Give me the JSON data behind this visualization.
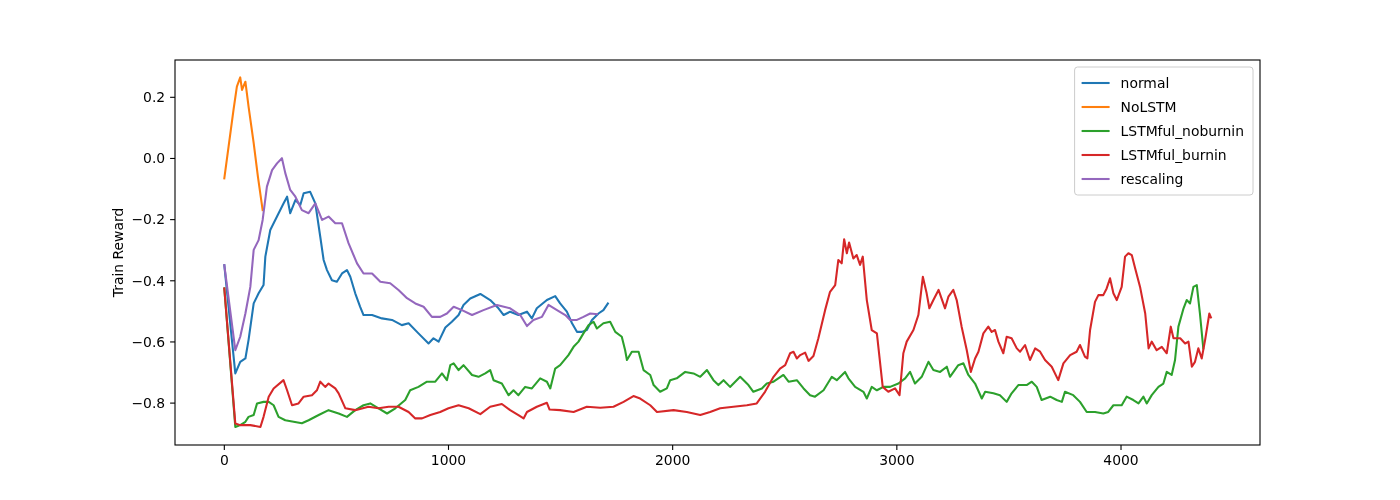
{
  "chart_data": {
    "type": "line",
    "ylabel": "Train Reward",
    "xlim": [
      -220,
      4620
    ],
    "ylim": [
      -0.937,
      0.322
    ],
    "xticks": [
      0,
      1000,
      2000,
      3000,
      4000
    ],
    "yticks": [
      {
        "value": 0.2,
        "label": "0.2"
      },
      {
        "value": 0,
        "label": "0.0"
      },
      {
        "value": -0.2,
        "label": "−0.2"
      },
      {
        "value": -0.4,
        "label": "−0.4"
      },
      {
        "value": -0.6,
        "label": "−0.6"
      },
      {
        "value": -0.8,
        "label": "−0.8"
      }
    ],
    "legend": "top right",
    "series": [
      {
        "name": "normal",
        "color": "#1f77b4",
        "x": [
          0,
          49,
          71,
          94,
          108,
          131,
          153,
          175,
          183,
          205,
          235,
          264,
          280,
          294,
          317,
          339,
          354,
          383,
          406,
          428,
          443,
          458,
          480,
          502,
          525,
          547,
          562,
          584,
          606,
          621,
          659,
          703,
          748,
          792,
          822,
          866,
          911,
          933,
          956,
          986,
          1015,
          1045,
          1067,
          1097,
          1142,
          1186,
          1223,
          1246,
          1275,
          1312,
          1350,
          1372,
          1394,
          1439,
          1476,
          1498,
          1528,
          1551,
          1573,
          1595,
          1617,
          1640,
          1669,
          1691,
          1711
        ],
        "values": [
          -0.349,
          -0.703,
          -0.665,
          -0.654,
          -0.594,
          -0.474,
          -0.441,
          -0.414,
          -0.321,
          -0.234,
          -0.19,
          -0.147,
          -0.125,
          -0.179,
          -0.136,
          -0.152,
          -0.114,
          -0.109,
          -0.147,
          -0.256,
          -0.332,
          -0.365,
          -0.398,
          -0.403,
          -0.376,
          -0.365,
          -0.387,
          -0.441,
          -0.485,
          -0.512,
          -0.512,
          -0.523,
          -0.528,
          -0.545,
          -0.539,
          -0.572,
          -0.605,
          -0.588,
          -0.599,
          -0.553,
          -0.534,
          -0.512,
          -0.479,
          -0.458,
          -0.443,
          -0.463,
          -0.49,
          -0.512,
          -0.501,
          -0.512,
          -0.501,
          -0.523,
          -0.49,
          -0.463,
          -0.45,
          -0.474,
          -0.501,
          -0.539,
          -0.567,
          -0.567,
          -0.561,
          -0.528,
          -0.507,
          -0.496,
          -0.474
        ]
      },
      {
        "name": "NoLSTM",
        "color": "#ff7f0e",
        "x": [
          0,
          19,
          41,
          56,
          71,
          79,
          94,
          108,
          131,
          150,
          171
        ],
        "values": [
          -0.065,
          0.039,
          0.159,
          0.235,
          0.265,
          0.224,
          0.251,
          0.17,
          0.05,
          -0.06,
          -0.169
        ]
      },
      {
        "name": "LSTMful_noburnin",
        "color": "#2ca02c",
        "x": [
          0,
          49,
          71,
          94,
          108,
          131,
          146,
          175,
          198,
          220,
          242,
          272,
          309,
          346,
          376,
          421,
          465,
          510,
          547,
          584,
          621,
          651,
          688,
          726,
          763,
          807,
          829,
          866,
          904,
          941,
          971,
          993,
          1008,
          1023,
          1045,
          1067,
          1105,
          1134,
          1164,
          1186,
          1201,
          1238,
          1268,
          1290,
          1312,
          1342,
          1372,
          1409,
          1439,
          1454,
          1476,
          1498,
          1535,
          1558,
          1580,
          1602,
          1625,
          1647,
          1662,
          1691,
          1721,
          1744,
          1773,
          1788,
          1796,
          1818,
          1848,
          1870,
          1900,
          1915,
          1944,
          1974,
          1989,
          2018,
          2056,
          2093,
          2123,
          2153,
          2182,
          2204,
          2227,
          2256,
          2301,
          2338,
          2360,
          2398,
          2420,
          2450,
          2494,
          2517,
          2554,
          2584,
          2613,
          2635,
          2673,
          2710,
          2732,
          2769,
          2784,
          2814,
          2851,
          2866,
          2888,
          2911,
          2940,
          2970,
          3007,
          3037,
          3059,
          3081,
          3111,
          3141,
          3163,
          3193,
          3223,
          3237,
          3274,
          3297,
          3319,
          3349,
          3379,
          3394,
          3431,
          3460,
          3490,
          3512,
          3542,
          3579,
          3602,
          3624,
          3646,
          3684,
          3713,
          3736,
          3750,
          3787,
          3817,
          3847,
          3884,
          3921,
          3943,
          3966,
          4003,
          4025,
          4055,
          4078,
          4100,
          4115,
          4137,
          4167,
          4189,
          4204,
          4226,
          4241,
          4256,
          4279,
          4293,
          4308,
          4323,
          4338,
          4352,
          4367
        ],
        "values": [
          -0.425,
          -0.878,
          -0.872,
          -0.861,
          -0.845,
          -0.839,
          -0.801,
          -0.796,
          -0.796,
          -0.807,
          -0.845,
          -0.856,
          -0.861,
          -0.866,
          -0.856,
          -0.839,
          -0.823,
          -0.834,
          -0.845,
          -0.823,
          -0.807,
          -0.801,
          -0.817,
          -0.834,
          -0.817,
          -0.79,
          -0.758,
          -0.747,
          -0.73,
          -0.73,
          -0.703,
          -0.725,
          -0.676,
          -0.67,
          -0.692,
          -0.676,
          -0.708,
          -0.714,
          -0.703,
          -0.692,
          -0.725,
          -0.736,
          -0.774,
          -0.758,
          -0.774,
          -0.747,
          -0.752,
          -0.719,
          -0.73,
          -0.752,
          -0.687,
          -0.676,
          -0.643,
          -0.616,
          -0.599,
          -0.572,
          -0.545,
          -0.534,
          -0.556,
          -0.539,
          -0.534,
          -0.567,
          -0.583,
          -0.627,
          -0.659,
          -0.632,
          -0.632,
          -0.692,
          -0.708,
          -0.741,
          -0.763,
          -0.752,
          -0.725,
          -0.719,
          -0.698,
          -0.703,
          -0.714,
          -0.692,
          -0.725,
          -0.741,
          -0.725,
          -0.747,
          -0.714,
          -0.741,
          -0.763,
          -0.752,
          -0.736,
          -0.73,
          -0.708,
          -0.73,
          -0.725,
          -0.752,
          -0.774,
          -0.779,
          -0.758,
          -0.714,
          -0.725,
          -0.698,
          -0.719,
          -0.747,
          -0.763,
          -0.785,
          -0.747,
          -0.758,
          -0.747,
          -0.747,
          -0.736,
          -0.719,
          -0.698,
          -0.736,
          -0.714,
          -0.665,
          -0.692,
          -0.698,
          -0.681,
          -0.714,
          -0.676,
          -0.67,
          -0.708,
          -0.736,
          -0.785,
          -0.763,
          -0.768,
          -0.774,
          -0.796,
          -0.768,
          -0.741,
          -0.741,
          -0.73,
          -0.747,
          -0.79,
          -0.779,
          -0.79,
          -0.796,
          -0.763,
          -0.774,
          -0.796,
          -0.829,
          -0.829,
          -0.834,
          -0.829,
          -0.807,
          -0.807,
          -0.779,
          -0.79,
          -0.801,
          -0.779,
          -0.801,
          -0.774,
          -0.747,
          -0.736,
          -0.698,
          -0.708,
          -0.659,
          -0.55,
          -0.49,
          -0.463,
          -0.474,
          -0.42,
          -0.414,
          -0.507,
          -0.621
        ]
      },
      {
        "name": "LSTMful_burnin",
        "color": "#d62728",
        "x": [
          0,
          49,
          71,
          116,
          161,
          175,
          198,
          220,
          264,
          280,
          302,
          331,
          354,
          391,
          413,
          428,
          450,
          465,
          495,
          510,
          540,
          584,
          643,
          688,
          733,
          777,
          822,
          852,
          882,
          919,
          963,
          1000,
          1045,
          1090,
          1142,
          1186,
          1238,
          1275,
          1312,
          1335,
          1350,
          1394,
          1439,
          1451,
          1498,
          1558,
          1617,
          1677,
          1736,
          1781,
          1825,
          1855,
          1900,
          1930,
          2004,
          2063,
          2123,
          2167,
          2212,
          2271,
          2331,
          2375,
          2412,
          2450,
          2479,
          2502,
          2524,
          2539,
          2554,
          2569,
          2591,
          2606,
          2628,
          2650,
          2680,
          2702,
          2725,
          2739,
          2754,
          2765,
          2777,
          2787,
          2806,
          2821,
          2836,
          2848,
          2866,
          2888,
          2911,
          2937,
          2962,
          2992,
          3012,
          3029,
          3044,
          3074,
          3096,
          3116,
          3133,
          3145,
          3163,
          3186,
          3215,
          3230,
          3252,
          3267,
          3289,
          3312,
          3330,
          3349,
          3364,
          3386,
          3408,
          3423,
          3438,
          3453,
          3475,
          3490,
          3512,
          3535,
          3550,
          3572,
          3594,
          3617,
          3639,
          3661,
          3691,
          3720,
          3743,
          3773,
          3802,
          3817,
          3839,
          3850,
          3862,
          3884,
          3899,
          3921,
          3936,
          3951,
          3966,
          3981,
          4003,
          4018,
          4033,
          4048,
          4063,
          4085,
          4108,
          4123,
          4137,
          4159,
          4182,
          4204,
          4222,
          4234,
          4264,
          4286,
          4301,
          4316,
          4330,
          4345,
          4360,
          4375,
          4394,
          4401
        ],
        "values": [
          -0.425,
          -0.867,
          -0.872,
          -0.872,
          -0.878,
          -0.845,
          -0.779,
          -0.752,
          -0.725,
          -0.758,
          -0.807,
          -0.801,
          -0.779,
          -0.774,
          -0.758,
          -0.73,
          -0.747,
          -0.736,
          -0.752,
          -0.768,
          -0.817,
          -0.823,
          -0.812,
          -0.817,
          -0.812,
          -0.812,
          -0.829,
          -0.85,
          -0.85,
          -0.839,
          -0.829,
          -0.817,
          -0.807,
          -0.817,
          -0.836,
          -0.812,
          -0.803,
          -0.823,
          -0.839,
          -0.85,
          -0.829,
          -0.812,
          -0.799,
          -0.821,
          -0.823,
          -0.829,
          -0.812,
          -0.815,
          -0.812,
          -0.796,
          -0.777,
          -0.785,
          -0.807,
          -0.829,
          -0.823,
          -0.829,
          -0.839,
          -0.829,
          -0.817,
          -0.812,
          -0.807,
          -0.801,
          -0.763,
          -0.714,
          -0.687,
          -0.676,
          -0.637,
          -0.632,
          -0.654,
          -0.643,
          -0.635,
          -0.662,
          -0.646,
          -0.588,
          -0.496,
          -0.436,
          -0.414,
          -0.332,
          -0.343,
          -0.264,
          -0.31,
          -0.275,
          -0.327,
          -0.316,
          -0.348,
          -0.321,
          -0.463,
          -0.561,
          -0.572,
          -0.747,
          -0.763,
          -0.752,
          -0.774,
          -0.637,
          -0.599,
          -0.561,
          -0.512,
          -0.387,
          -0.441,
          -0.49,
          -0.463,
          -0.43,
          -0.49,
          -0.452,
          -0.43,
          -0.463,
          -0.55,
          -0.627,
          -0.698,
          -0.654,
          -0.632,
          -0.572,
          -0.55,
          -0.567,
          -0.561,
          -0.599,
          -0.637,
          -0.583,
          -0.588,
          -0.621,
          -0.632,
          -0.61,
          -0.659,
          -0.621,
          -0.632,
          -0.659,
          -0.681,
          -0.725,
          -0.67,
          -0.643,
          -0.632,
          -0.61,
          -0.648,
          -0.654,
          -0.561,
          -0.469,
          -0.447,
          -0.447,
          -0.425,
          -0.392,
          -0.441,
          -0.463,
          -0.42,
          -0.321,
          -0.31,
          -0.316,
          -0.359,
          -0.42,
          -0.507,
          -0.621,
          -0.599,
          -0.627,
          -0.616,
          -0.637,
          -0.55,
          -0.588,
          -0.588,
          -0.605,
          -0.599,
          -0.681,
          -0.665,
          -0.621,
          -0.654,
          -0.594,
          -0.507,
          -0.52
        ]
      },
      {
        "name": "rescaling",
        "color": "#9467bd",
        "x": [
          0,
          49,
          71,
          94,
          116,
          131,
          153,
          171,
          190,
          213,
          235,
          257,
          272,
          294,
          317,
          346,
          376,
          406,
          436,
          465,
          495,
          525,
          554,
          592,
          621,
          659,
          696,
          740,
          777,
          815,
          852,
          889,
          926,
          963,
          993,
          1023,
          1060,
          1105,
          1156,
          1216,
          1275,
          1320,
          1350,
          1379,
          1417,
          1446,
          1484,
          1521,
          1543,
          1573,
          1602,
          1632,
          1662
        ],
        "values": [
          -0.349,
          -0.627,
          -0.583,
          -0.507,
          -0.42,
          -0.299,
          -0.267,
          -0.201,
          -0.092,
          -0.038,
          -0.016,
          0.001,
          -0.048,
          -0.103,
          -0.125,
          -0.169,
          -0.179,
          -0.147,
          -0.201,
          -0.19,
          -0.212,
          -0.212,
          -0.277,
          -0.343,
          -0.376,
          -0.376,
          -0.403,
          -0.408,
          -0.43,
          -0.457,
          -0.474,
          -0.485,
          -0.518,
          -0.518,
          -0.507,
          -0.485,
          -0.496,
          -0.512,
          -0.496,
          -0.479,
          -0.49,
          -0.512,
          -0.548,
          -0.528,
          -0.518,
          -0.479,
          -0.496,
          -0.512,
          -0.528,
          -0.528,
          -0.518,
          -0.507,
          -0.509
        ]
      }
    ]
  }
}
